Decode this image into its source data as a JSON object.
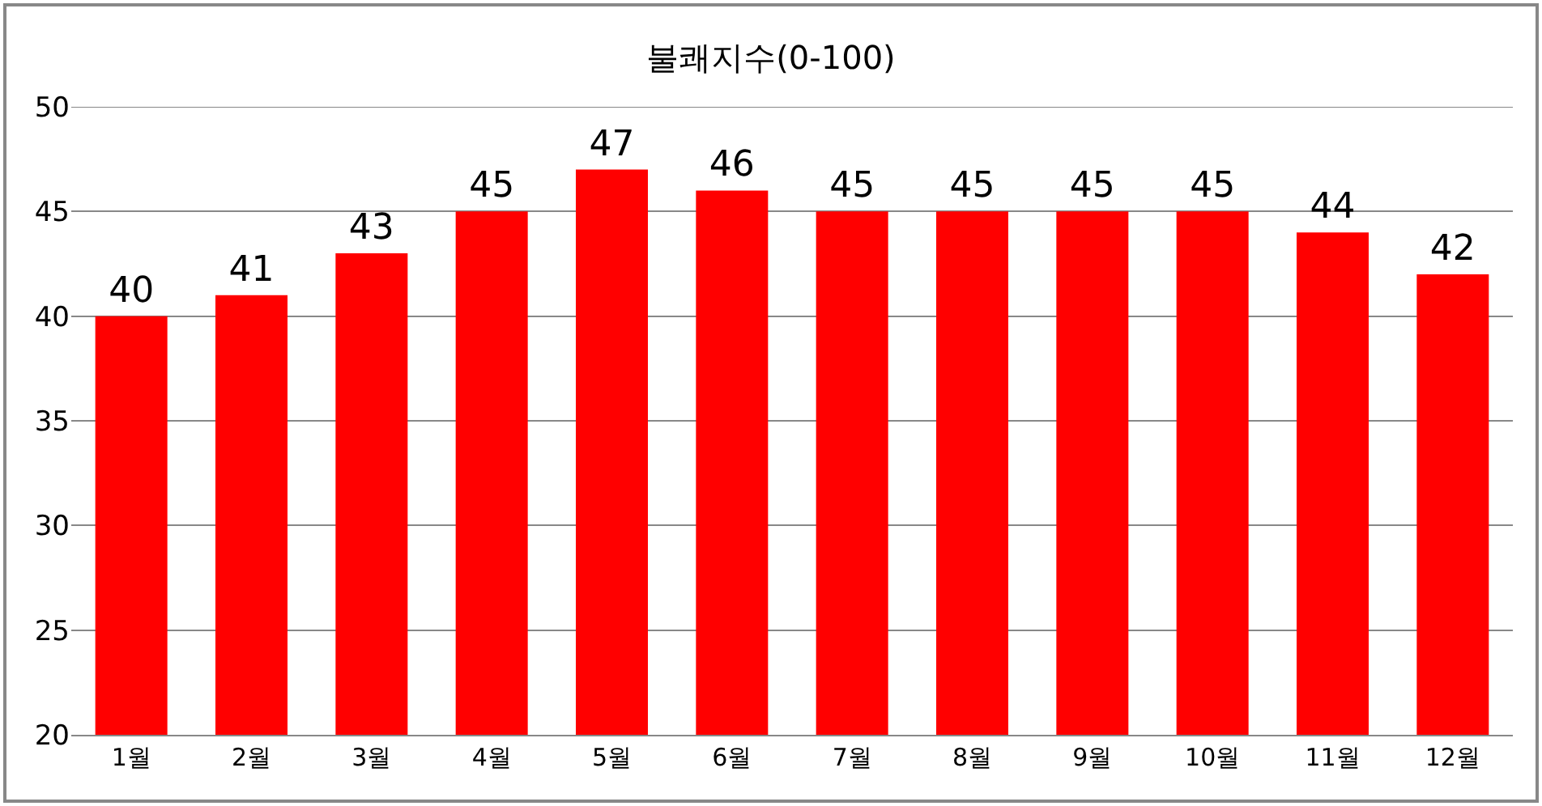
{
  "chart_data": {
    "type": "bar",
    "title": "불쾌지수(0-100)",
    "categories": [
      "1월",
      "2월",
      "3월",
      "4월",
      "5월",
      "6월",
      "7월",
      "8월",
      "9월",
      "10월",
      "11월",
      "12월"
    ],
    "values": [
      40,
      41,
      43,
      45,
      47,
      46,
      45,
      45,
      45,
      45,
      44,
      42
    ],
    "color": "#ff0000",
    "ylim": [
      20,
      50
    ],
    "yticks": [
      20,
      25,
      30,
      35,
      40,
      45,
      50
    ],
    "grid": "y",
    "data_labels": true
  }
}
